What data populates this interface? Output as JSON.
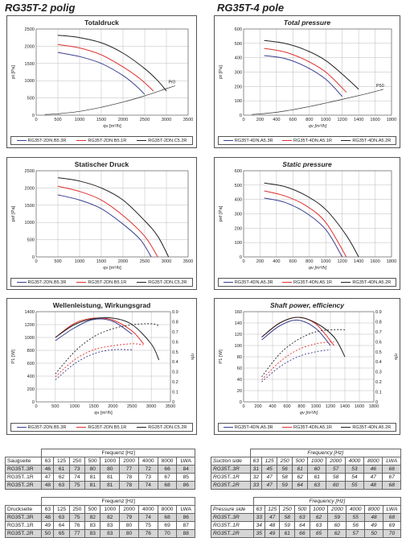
{
  "headers": {
    "left": "RG35T-2 polig",
    "right": "RG35T-4 pole"
  },
  "colors": {
    "series1": "#3a3f8f",
    "series2": "#e0302c",
    "series3": "#222222"
  },
  "chart_data": [
    {
      "id": "c1",
      "type": "line",
      "title": "Totaldruck",
      "xlabel": "qv [m³/h]",
      "ylabel": "pt [Pa]",
      "xlim": [
        0,
        3500
      ],
      "ylim": [
        0,
        2500
      ],
      "xticks": [
        0,
        500,
        1000,
        1500,
        2000,
        2500,
        3000,
        3500
      ],
      "yticks": [
        0,
        500,
        1000,
        1500,
        2000,
        2500
      ],
      "annotation": "Pr0",
      "series": [
        {
          "name": "RG35T-2DN.B5.3R",
          "x": [
            500,
            1000,
            1500,
            2000,
            2300,
            2500
          ],
          "y": [
            1820,
            1700,
            1500,
            1150,
            850,
            600
          ]
        },
        {
          "name": "RG35T-2DN.B5.1R",
          "x": [
            500,
            1000,
            1500,
            2000,
            2400,
            2700
          ],
          "y": [
            2050,
            1950,
            1750,
            1400,
            1050,
            700
          ]
        },
        {
          "name": "RG35T-2DN.C5.2R",
          "x": [
            500,
            1000,
            1500,
            2000,
            2500,
            2800,
            3000
          ],
          "y": [
            2320,
            2250,
            2100,
            1800,
            1350,
            1000,
            700
          ]
        }
      ],
      "curve": {
        "x": [
          200,
          500,
          1000,
          1500,
          2000,
          2500,
          3000,
          3200
        ],
        "y": [
          20,
          40,
          110,
          230,
          380,
          560,
          770,
          850
        ]
      }
    },
    {
      "id": "c2",
      "type": "line",
      "title": "Total pressure",
      "xlabel": "qv [m³/h]",
      "ylabel": "pt [Pa]",
      "xlim": [
        0,
        1800
      ],
      "ylim": [
        0,
        600
      ],
      "xticks": [
        0,
        200,
        400,
        600,
        800,
        1000,
        1200,
        1400,
        1600,
        1800
      ],
      "yticks": [
        0,
        100,
        200,
        300,
        400,
        500,
        600
      ],
      "annotation": "P50",
      "series": [
        {
          "name": "RG35T-4DN.A5.3R",
          "x": [
            250,
            500,
            750,
            1000,
            1200
          ],
          "y": [
            415,
            395,
            340,
            250,
            130
          ]
        },
        {
          "name": "RG35T-4DN.A5.1R",
          "x": [
            250,
            500,
            750,
            1000,
            1250
          ],
          "y": [
            465,
            440,
            385,
            300,
            160
          ]
        },
        {
          "name": "RG35T-4DN.A5.2R",
          "x": [
            250,
            500,
            750,
            1000,
            1250,
            1400
          ],
          "y": [
            520,
            500,
            455,
            380,
            260,
            180
          ]
        }
      ],
      "curve": {
        "x": [
          100,
          400,
          800,
          1200,
          1500,
          1700
        ],
        "y": [
          5,
          20,
          60,
          110,
          150,
          180
        ]
      }
    },
    {
      "id": "c3",
      "type": "line",
      "title": "Statischer Druck",
      "xlabel": "qv [m³/h]",
      "ylabel": "psf [Pa]",
      "xlim": [
        0,
        3500
      ],
      "ylim": [
        0,
        2500
      ],
      "xticks": [
        0,
        500,
        1000,
        1500,
        2000,
        2500,
        3000,
        3500
      ],
      "yticks": [
        0,
        500,
        1000,
        1500,
        2000,
        2500
      ],
      "series": [
        {
          "name": "RG35T-2DN.B5.3R",
          "x": [
            500,
            1000,
            1500,
            2000,
            2400,
            2650
          ],
          "y": [
            1800,
            1650,
            1400,
            950,
            500,
            0
          ]
        },
        {
          "name": "RG35T-2DN.B5.1R",
          "x": [
            500,
            1000,
            1500,
            2000,
            2500,
            2800
          ],
          "y": [
            2050,
            1900,
            1650,
            1200,
            600,
            0
          ]
        },
        {
          "name": "RG35T-2DN.C5.2R",
          "x": [
            500,
            1000,
            1500,
            2000,
            2500,
            2800,
            3050
          ],
          "y": [
            2300,
            2200,
            2000,
            1650,
            1050,
            600,
            0
          ]
        }
      ]
    },
    {
      "id": "c4",
      "type": "line",
      "title": "Static pressure",
      "xlabel": "qv [m³/h]",
      "ylabel": "psf [Pa]",
      "xlim": [
        0,
        1800
      ],
      "ylim": [
        0,
        600
      ],
      "xticks": [
        0,
        200,
        400,
        600,
        800,
        1000,
        1200,
        1400,
        1600,
        1800
      ],
      "yticks": [
        0,
        100,
        200,
        300,
        400,
        500,
        600
      ],
      "series": [
        {
          "name": "RG35T-4DN.A5.3R",
          "x": [
            250,
            500,
            750,
            1000,
            1200
          ],
          "y": [
            410,
            380,
            310,
            190,
            0
          ]
        },
        {
          "name": "RG35T-4DN.A5.1R",
          "x": [
            250,
            500,
            750,
            1000,
            1250
          ],
          "y": [
            460,
            425,
            360,
            240,
            0
          ]
        },
        {
          "name": "RG35T-4DN.A5.2R",
          "x": [
            250,
            500,
            750,
            1000,
            1250,
            1400
          ],
          "y": [
            515,
            490,
            430,
            330,
            150,
            0
          ]
        }
      ]
    },
    {
      "id": "c5",
      "type": "line",
      "title": "Wellenleistung, Wirkungsgrad",
      "xlabel": "qv [m³/h]",
      "ylabel": "P1 [W]",
      "y2label": "ηfs",
      "xlim": [
        0,
        3500
      ],
      "ylim": [
        0,
        1400
      ],
      "y2lim": [
        0,
        0.9
      ],
      "xticks": [
        0,
        500,
        1000,
        1500,
        2000,
        2500,
        3000,
        3500
      ],
      "yticks": [
        0,
        200,
        400,
        600,
        800,
        1000,
        1200,
        1400
      ],
      "y2ticks": [
        0,
        0.1,
        0.2,
        0.3,
        0.4,
        0.5,
        0.6,
        0.7,
        0.8,
        0.9
      ],
      "series": [
        {
          "name": "RG35T-2DN.B5.3R",
          "x": [
            500,
            1000,
            1500,
            2000,
            2500
          ],
          "y": [
            950,
            1150,
            1280,
            1250,
            1050
          ]
        },
        {
          "name": "RG35T-2DN.B5.1R",
          "x": [
            500,
            1000,
            1500,
            2000,
            2500,
            2800
          ],
          "y": [
            1000,
            1220,
            1300,
            1270,
            1100,
            900
          ]
        },
        {
          "name": "RG35T-2DN.C5.2R",
          "x": [
            500,
            1000,
            1500,
            2000,
            2500,
            3000,
            3200
          ],
          "y": [
            1000,
            1200,
            1290,
            1300,
            1200,
            900,
            650
          ]
        }
      ],
      "efficiency": [
        {
          "name": "RG35T-2DN.B5.3R",
          "x": [
            500,
            1000,
            1500,
            2000,
            2500
          ],
          "y": [
            0.22,
            0.38,
            0.48,
            0.52,
            0.52
          ]
        },
        {
          "name": "RG35T-2DN.B5.1R",
          "x": [
            500,
            1000,
            1500,
            2000,
            2500,
            2800
          ],
          "y": [
            0.25,
            0.42,
            0.52,
            0.56,
            0.58,
            0.57
          ]
        },
        {
          "name": "RG35T-2DN.C5.2R",
          "x": [
            500,
            1000,
            1500,
            2000,
            2500,
            3000,
            3200
          ],
          "y": [
            0.28,
            0.5,
            0.65,
            0.73,
            0.77,
            0.78,
            0.76
          ]
        }
      ]
    },
    {
      "id": "c6",
      "type": "line",
      "title": "Shaft power, efficiency",
      "xlabel": "qv [m³/h]",
      "ylabel": "P1 [W]",
      "y2label": "ηfs",
      "xlim": [
        0,
        1800
      ],
      "ylim": [
        0,
        160
      ],
      "y2lim": [
        0,
        0.9
      ],
      "xticks": [
        0,
        200,
        400,
        600,
        800,
        1000,
        1200,
        1400,
        1600,
        1800
      ],
      "xticklabels": [
        "0",
        "200",
        "400",
        "600",
        "800",
        "1000",
        "1200",
        "1400",
        "1600",
        "1800"
      ],
      "yticks": [
        0,
        20,
        40,
        60,
        80,
        100,
        120,
        140,
        160
      ],
      "y2ticks": [
        0,
        0.1,
        0.2,
        0.3,
        0.4,
        0.5,
        0.6,
        0.7,
        0.8,
        0.9
      ],
      "series": [
        {
          "name": "RG35T-4DN.A5.3R",
          "x": [
            250,
            500,
            750,
            1000,
            1200
          ],
          "y": [
            110,
            135,
            145,
            130,
            100
          ]
        },
        {
          "name": "RG35T-4DN.A5.1R",
          "x": [
            250,
            500,
            750,
            1000,
            1250
          ],
          "y": [
            115,
            140,
            150,
            138,
            100
          ]
        },
        {
          "name": "RG35T-4DN.A5.2R",
          "x": [
            250,
            500,
            750,
            1000,
            1250,
            1400
          ],
          "y": [
            115,
            140,
            150,
            140,
            115,
            80
          ]
        }
      ],
      "efficiency": [
        {
          "name": "RG35T-4DN.A5.3R",
          "x": [
            250,
            500,
            750,
            1000,
            1200
          ],
          "y": [
            0.2,
            0.35,
            0.45,
            0.5,
            0.52
          ]
        },
        {
          "name": "RG35T-4DN.A5.1R",
          "x": [
            250,
            500,
            750,
            1000,
            1250
          ],
          "y": [
            0.22,
            0.4,
            0.52,
            0.58,
            0.6
          ]
        },
        {
          "name": "RG35T-4DN.A5.2R",
          "x": [
            250,
            500,
            750,
            1000,
            1250,
            1400
          ],
          "y": [
            0.25,
            0.48,
            0.62,
            0.7,
            0.72,
            0.72
          ]
        }
      ]
    }
  ],
  "tables": {
    "freq_de": "Frequenz [Hz]",
    "freq_en": "Frequency [Hz]",
    "bands": [
      "63",
      "125",
      "250",
      "500",
      "1000",
      "2000",
      "4000",
      "8000",
      "LWA"
    ],
    "t1": {
      "head": "Saugseite",
      "rows": [
        {
          "label": "RG35T..3R",
          "values": [
            "46",
            "61",
            "73",
            "80",
            "80",
            "77",
            "72",
            "66",
            "84"
          ]
        },
        {
          "label": "RG35T..1R",
          "values": [
            "47",
            "62",
            "74",
            "81",
            "81",
            "78",
            "73",
            "67",
            "85"
          ]
        },
        {
          "label": "RG35T..2R",
          "values": [
            "48",
            "63",
            "75",
            "81",
            "81",
            "78",
            "74",
            "68",
            "86"
          ]
        }
      ]
    },
    "t2": {
      "head": "Suction side",
      "rows": [
        {
          "label": "RG35T..3R",
          "values": [
            "31",
            "45",
            "56",
            "61",
            "60",
            "57",
            "53",
            "46",
            "66"
          ]
        },
        {
          "label": "RG35T..1R",
          "values": [
            "32",
            "47",
            "58",
            "62",
            "61",
            "58",
            "54",
            "47",
            "67"
          ]
        },
        {
          "label": "RG35T..2R",
          "values": [
            "33",
            "47",
            "59",
            "64",
            "63",
            "60",
            "55",
            "48",
            "68"
          ]
        }
      ]
    },
    "t3": {
      "head": "Druckseite",
      "rows": [
        {
          "label": "RG35T..3R",
          "values": [
            "48",
            "63",
            "75",
            "82",
            "82",
            "79",
            "74",
            "68",
            "86"
          ]
        },
        {
          "label": "RG35T..1R",
          "values": [
            "49",
            "64",
            "76",
            "83",
            "83",
            "80",
            "75",
            "69",
            "87"
          ]
        },
        {
          "label": "RG35T..2R",
          "values": [
            "50",
            "65",
            "77",
            "83",
            "83",
            "80",
            "76",
            "70",
            "88"
          ]
        }
      ]
    },
    "t4": {
      "head": "Pressure side",
      "rows": [
        {
          "label": "RG35T..3R",
          "values": [
            "33",
            "47",
            "58",
            "63",
            "62",
            "59",
            "55",
            "48",
            "68"
          ]
        },
        {
          "label": "RG35T..1R",
          "values": [
            "34",
            "48",
            "59",
            "64",
            "63",
            "60",
            "56",
            "49",
            "69"
          ]
        },
        {
          "label": "RG35T..2R",
          "values": [
            "35",
            "49",
            "61",
            "66",
            "65",
            "62",
            "57",
            "50",
            "70"
          ]
        }
      ]
    }
  }
}
